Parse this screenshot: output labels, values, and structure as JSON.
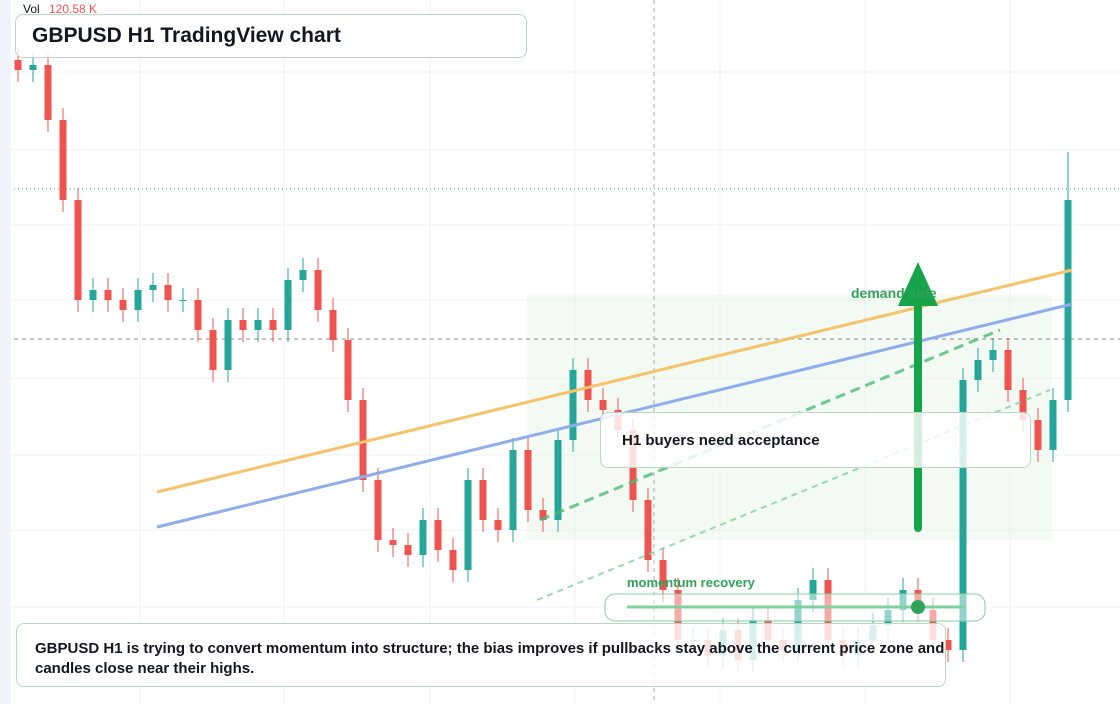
{
  "header": {
    "title": "GBPUSD H1 TradingView chart",
    "volume_label": "Vol",
    "volume": {
      "value": 120580,
      "label": "120.58 K"
    }
  },
  "annotations": {
    "demand": "demand side",
    "momentum": "momentum recovery",
    "callout": "H1 buyers need acceptance",
    "note": "GBPUSD H1 is trying to convert momentum into structure; the bias improves if pullbacks stay above the current price zone and candles close near their highs."
  },
  "chart_data": {
    "type": "candlestick",
    "ylim": [
      0,
      704
    ],
    "up_color": "#26a69a",
    "down_color": "#ef5350",
    "open": [
      644,
      634,
      639,
      584,
      504,
      404,
      414,
      404,
      394,
      414,
      419,
      404,
      404,
      374,
      334,
      384,
      374,
      384,
      374,
      424,
      434,
      394,
      364,
      304,
      224,
      164,
      159,
      149,
      184,
      154,
      134,
      224,
      184,
      174,
      254,
      194,
      184,
      264,
      334,
      304,
      294,
      274,
      204,
      144,
      114,
      64,
      64,
      49,
      74,
      44,
      84,
      64,
      54,
      104,
      124,
      64,
      49,
      64,
      79,
      94,
      114,
      94,
      64,
      54,
      324,
      344,
      354,
      314,
      284,
      254,
      304
    ],
    "high": [
      656,
      651,
      651,
      596,
      516,
      426,
      426,
      416,
      426,
      431,
      431,
      416,
      416,
      386,
      396,
      396,
      396,
      396,
      436,
      446,
      446,
      406,
      376,
      316,
      236,
      176,
      171,
      196,
      196,
      166,
      236,
      236,
      196,
      266,
      266,
      206,
      276,
      346,
      346,
      316,
      306,
      286,
      216,
      156,
      126,
      76,
      76,
      86,
      86,
      96,
      96,
      76,
      116,
      136,
      136,
      76,
      76,
      91,
      106,
      126,
      126,
      106,
      76,
      336,
      356,
      366,
      366,
      326,
      296,
      316,
      552
    ],
    "low": [
      622,
      622,
      572,
      492,
      392,
      392,
      392,
      382,
      382,
      402,
      392,
      392,
      362,
      322,
      322,
      362,
      362,
      362,
      362,
      412,
      382,
      352,
      292,
      212,
      152,
      147,
      137,
      137,
      142,
      122,
      122,
      172,
      162,
      162,
      182,
      172,
      172,
      252,
      292,
      282,
      262,
      192,
      132,
      102,
      52,
      52,
      37,
      37,
      32,
      32,
      52,
      42,
      42,
      92,
      52,
      37,
      37,
      52,
      67,
      82,
      82,
      52,
      42,
      42,
      312,
      332,
      302,
      272,
      242,
      242,
      292
    ],
    "close": [
      634,
      639,
      584,
      504,
      404,
      414,
      404,
      394,
      414,
      419,
      404,
      404,
      374,
      334,
      384,
      374,
      384,
      374,
      424,
      434,
      394,
      364,
      304,
      224,
      164,
      159,
      149,
      184,
      154,
      134,
      224,
      184,
      174,
      254,
      194,
      184,
      264,
      334,
      304,
      294,
      274,
      204,
      144,
      114,
      64,
      64,
      49,
      74,
      44,
      84,
      64,
      54,
      104,
      124,
      64,
      49,
      64,
      79,
      94,
      114,
      94,
      64,
      54,
      324,
      344,
      354,
      314,
      284,
      254,
      304,
      504
    ]
  }
}
